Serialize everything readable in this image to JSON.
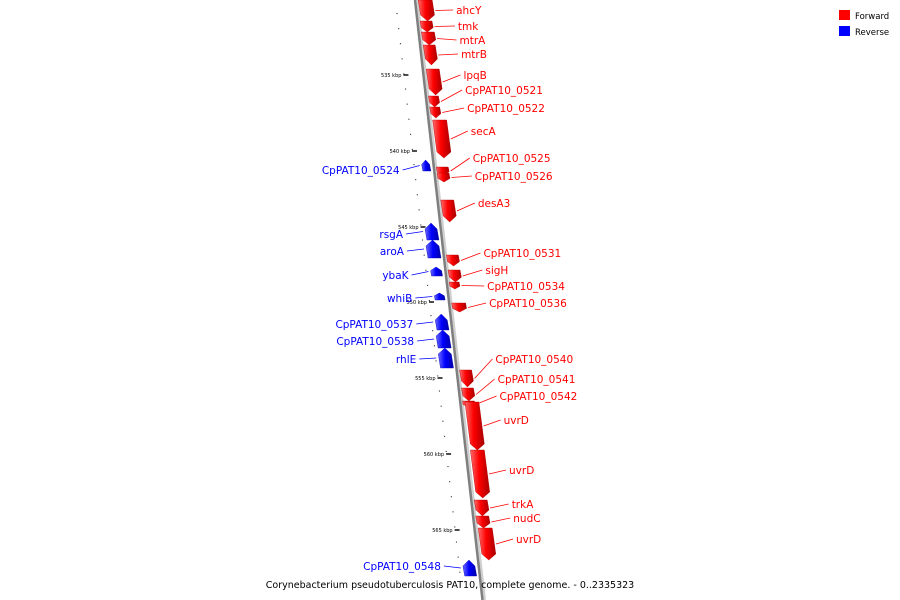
{
  "caption": "Corynebacterium pseudotuberculosis PAT10, complete genome. - 0..2335323",
  "legend": [
    {
      "label": "Forward",
      "color": "#ff0000"
    },
    {
      "label": "Reverse",
      "color": "#0000ff"
    }
  ],
  "colors": {
    "forward": "#ff0000",
    "reverse": "#0000ff",
    "backbone": "#999999"
  },
  "ticks": [
    {
      "label": "535 kbp",
      "kbp": 535
    },
    {
      "label": "540 kbp",
      "kbp": 540
    },
    {
      "label": "545 kbp",
      "kbp": 545
    },
    {
      "label": "550 kbp",
      "kbp": 550
    },
    {
      "label": "555 kbp",
      "kbp": 555
    },
    {
      "label": "560 kbp",
      "kbp": 560
    },
    {
      "label": "565 kbp",
      "kbp": 565
    }
  ],
  "features": [
    {
      "name": "ahcY",
      "strand": "forward"
    },
    {
      "name": "tmk",
      "strand": "forward"
    },
    {
      "name": "mtrA",
      "strand": "forward"
    },
    {
      "name": "mtrB",
      "strand": "forward"
    },
    {
      "name": "lpqB",
      "strand": "forward"
    },
    {
      "name": "CpPAT10_0521",
      "strand": "forward"
    },
    {
      "name": "CpPAT10_0522",
      "strand": "forward"
    },
    {
      "name": "secA",
      "strand": "forward"
    },
    {
      "name": "CpPAT10_0524",
      "strand": "reverse"
    },
    {
      "name": "CpPAT10_0525",
      "strand": "forward"
    },
    {
      "name": "CpPAT10_0526",
      "strand": "forward"
    },
    {
      "name": "desA3",
      "strand": "forward"
    },
    {
      "name": "rsgA",
      "strand": "reverse"
    },
    {
      "name": "aroA",
      "strand": "reverse"
    },
    {
      "name": "CpPAT10_0531",
      "strand": "forward"
    },
    {
      "name": "sigH",
      "strand": "forward"
    },
    {
      "name": "ybaK",
      "strand": "reverse"
    },
    {
      "name": "CpPAT10_0534",
      "strand": "forward"
    },
    {
      "name": "whiB",
      "strand": "reverse"
    },
    {
      "name": "CpPAT10_0536",
      "strand": "forward"
    },
    {
      "name": "CpPAT10_0537",
      "strand": "reverse"
    },
    {
      "name": "CpPAT10_0538",
      "strand": "reverse"
    },
    {
      "name": "rhlE",
      "strand": "reverse"
    },
    {
      "name": "CpPAT10_0540",
      "strand": "forward"
    },
    {
      "name": "CpPAT10_0541",
      "strand": "forward"
    },
    {
      "name": "CpPAT10_0542",
      "strand": "forward"
    },
    {
      "name": "uvrD",
      "strand": "forward"
    },
    {
      "name": "uvrD",
      "strand": "forward"
    },
    {
      "name": "trkA",
      "strand": "forward"
    },
    {
      "name": "nudC",
      "strand": "forward"
    },
    {
      "name": "uvrD",
      "strand": "forward"
    },
    {
      "name": "CpPAT10_0548",
      "strand": "reverse"
    }
  ]
}
